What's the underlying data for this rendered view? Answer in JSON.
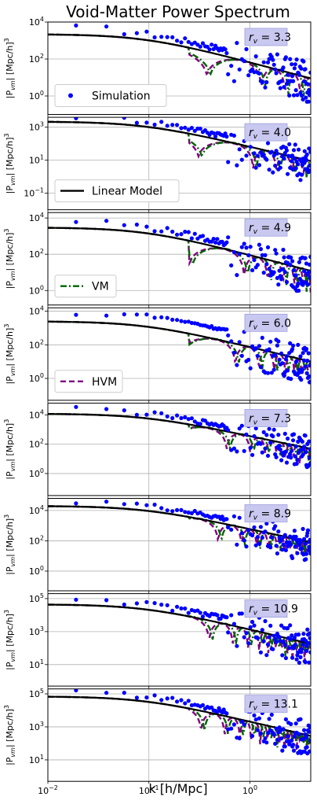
{
  "chart_data": {
    "type": "scatter",
    "title": "Void-Matter Power Spectrum",
    "xlabel": "k [h/Mpc]",
    "ylabel": "|P_vm| [Mpc/h]^3",
    "xscale": "log",
    "yscale": "log",
    "xlim": [
      0.01,
      4.0
    ],
    "x_ticks": [
      {
        "value": 0.01,
        "base": "10",
        "exp": "−2"
      },
      {
        "value": 0.1,
        "base": "10",
        "exp": "−1"
      },
      {
        "value": 1.0,
        "base": "10",
        "exp": "0"
      }
    ],
    "grid": true,
    "colors": {
      "simulation": "#0000ff",
      "linear": "#000000",
      "vm": "#006400",
      "hvm": "#800080",
      "label_box": "#c8c8f0"
    },
    "legend_entries": [
      {
        "panel": 0,
        "name": "Simulation",
        "style": "dot"
      },
      {
        "panel": 1,
        "name": "Linear Model",
        "style": "solid"
      },
      {
        "panel": 2,
        "name": "VM",
        "style": "dashdot"
      },
      {
        "panel": 3,
        "name": "HVM",
        "style": "dashed"
      }
    ],
    "panels": [
      {
        "rv": "3.3",
        "amp": 2200,
        "ylim_log": [
          -1,
          4
        ],
        "yticks": [
          {
            "value": 1,
            "base": "10",
            "exp": "0"
          },
          {
            "value": 100,
            "base": "10",
            "exp": "2"
          },
          {
            "value": 10000,
            "base": "10",
            "exp": "4"
          }
        ]
      },
      {
        "rv": "4.0",
        "amp": 2200,
        "ylim_log": [
          -2,
          3.6
        ],
        "yticks": [
          {
            "value": 0.1,
            "base": "10",
            "exp": "−1"
          },
          {
            "value": 10,
            "base": "10",
            "exp": "1"
          },
          {
            "value": 1000,
            "base": "10",
            "exp": "3"
          }
        ]
      },
      {
        "rv": "4.9",
        "amp": 3000,
        "ylim_log": [
          -0.8,
          4.3
        ],
        "yticks": [
          {
            "value": 1,
            "base": "10",
            "exp": "0"
          },
          {
            "value": 100,
            "base": "10",
            "exp": "2"
          },
          {
            "value": 10000,
            "base": "10",
            "exp": "4"
          }
        ]
      },
      {
        "rv": "6.0",
        "amp": 2500,
        "ylim_log": [
          -1.3,
          4.2
        ],
        "yticks": [
          {
            "value": 1,
            "base": "10",
            "exp": "0"
          },
          {
            "value": 100,
            "base": "10",
            "exp": "2"
          },
          {
            "value": 10000,
            "base": "10",
            "exp": "4"
          }
        ]
      },
      {
        "rv": "7.3",
        "amp": 12000,
        "ylim_log": [
          -1.5,
          4.8
        ],
        "yticks": [
          {
            "value": 1,
            "base": "10",
            "exp": "0"
          },
          {
            "value": 100,
            "base": "10",
            "exp": "2"
          },
          {
            "value": 10000,
            "base": "10",
            "exp": "4"
          }
        ]
      },
      {
        "rv": "8.9",
        "amp": 20000,
        "ylim_log": [
          -1.3,
          4.8
        ],
        "yticks": [
          {
            "value": 1,
            "base": "10",
            "exp": "0"
          },
          {
            "value": 100,
            "base": "10",
            "exp": "2"
          },
          {
            "value": 10000,
            "base": "10",
            "exp": "4"
          }
        ]
      },
      {
        "rv": "10.9",
        "amp": 45000,
        "ylim_log": [
          -0.3,
          5.3
        ],
        "yticks": [
          {
            "value": 10,
            "base": "10",
            "exp": "1"
          },
          {
            "value": 1000,
            "base": "10",
            "exp": "3"
          },
          {
            "value": 100000,
            "base": "10",
            "exp": "5"
          }
        ]
      },
      {
        "rv": "13.1",
        "amp": 70000,
        "ylim_log": [
          -0.3,
          5.3
        ],
        "yticks": [
          {
            "value": 10,
            "base": "10",
            "exp": "1"
          },
          {
            "value": 1000,
            "base": "10",
            "exp": "3"
          },
          {
            "value": 100000,
            "base": "10",
            "exp": "5"
          }
        ]
      }
    ]
  }
}
